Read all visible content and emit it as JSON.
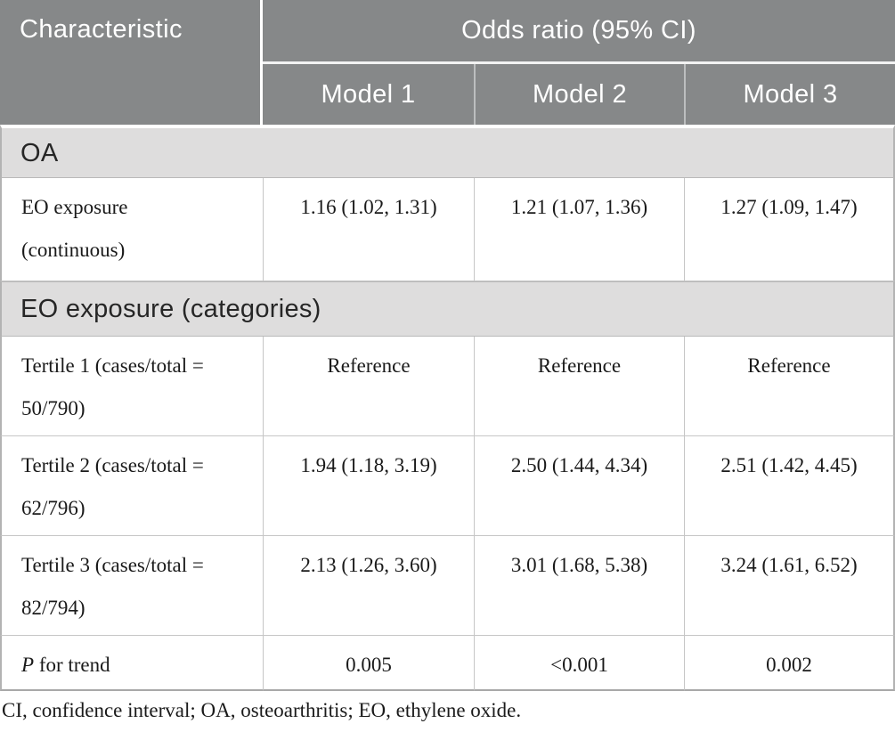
{
  "header": {
    "characteristic": "Characteristic",
    "group": "Odds ratio (95% CI)",
    "models": [
      "Model 1",
      "Model 2",
      "Model 3"
    ]
  },
  "rows": [
    {
      "type": "section",
      "label": "OA"
    },
    {
      "type": "data",
      "label": "EO exposure (continuous)",
      "values": [
        "1.16 (1.02, 1.31)",
        "1.21 (1.07, 1.36)",
        "1.27 (1.09, 1.47)"
      ]
    },
    {
      "type": "section",
      "label": "EO exposure (categories)"
    },
    {
      "type": "data",
      "label": "Tertile 1 (cases/total = 50/790)",
      "values": [
        "Reference",
        "Reference",
        "Reference"
      ]
    },
    {
      "type": "data",
      "label": "Tertile 2 (cases/total = 62/796)",
      "values": [
        "1.94 (1.18, 3.19)",
        "2.50 (1.44, 4.34)",
        "2.51 (1.42, 4.45)"
      ]
    },
    {
      "type": "data",
      "label": "Tertile 3 (cases/total = 82/794)",
      "values": [
        "2.13 (1.26, 3.60)",
        "3.01 (1.68, 5.38)",
        "3.24 (1.61, 6.52)"
      ]
    },
    {
      "type": "data",
      "label_italic": "P",
      "label_rest": " for trend",
      "values": [
        "0.005",
        "<0.001",
        "0.002"
      ]
    }
  ],
  "footnote": "CI, confidence interval; OA, osteoarthritis; EO, ethylene oxide.",
  "colors": {
    "header_bg": "#868889",
    "header_text": "#ffffff",
    "section_bg": "#dedddd",
    "cell_border": "#c6c6c6",
    "outer_border": "#b3b3b3",
    "body_text": "#1a1a1a"
  }
}
